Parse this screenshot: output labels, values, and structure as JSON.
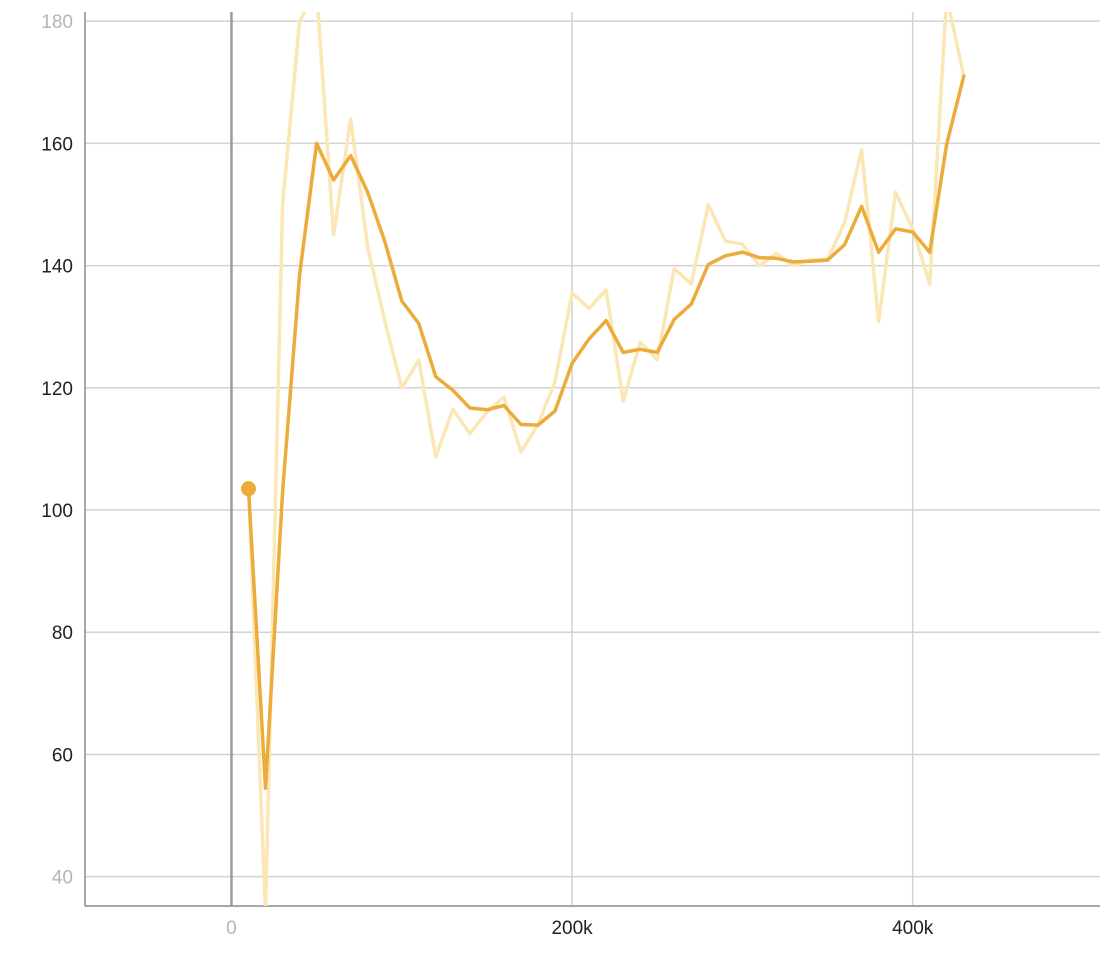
{
  "chart_data": {
    "type": "line",
    "title": "",
    "xlabel": "",
    "ylabel": "",
    "xlim": [
      -86000,
      510000
    ],
    "ylim": [
      35.2,
      181.5
    ],
    "grid": true,
    "x_ticks": [
      {
        "value": 0,
        "label": "0",
        "faded": true
      },
      {
        "value": 200000,
        "label": "200k",
        "faded": false
      },
      {
        "value": 400000,
        "label": "400k",
        "faded": false
      }
    ],
    "y_ticks": [
      {
        "value": 40,
        "label": "40",
        "faded": true
      },
      {
        "value": 60,
        "label": "60",
        "faded": false
      },
      {
        "value": 80,
        "label": "80",
        "faded": false
      },
      {
        "value": 100,
        "label": "100",
        "faded": false
      },
      {
        "value": 120,
        "label": "120",
        "faded": false
      },
      {
        "value": 140,
        "label": "140",
        "faded": false
      },
      {
        "value": 160,
        "label": "160",
        "faded": false
      },
      {
        "value": 180,
        "label": "180",
        "faded": true
      }
    ],
    "x": [
      10000,
      20000,
      30000,
      40000,
      50000,
      60000,
      70000,
      80000,
      90000,
      100000,
      110000,
      120000,
      130000,
      140000,
      150000,
      160000,
      170000,
      180000,
      190000,
      200000,
      210000,
      220000,
      230000,
      240000,
      250000,
      260000,
      270000,
      280000,
      290000,
      300000,
      310000,
      320000,
      330000,
      340000,
      350000,
      360000,
      370000,
      380000,
      390000,
      400000,
      410000,
      420000,
      430000
    ],
    "series": [
      {
        "role": "raw",
        "color": "#fbe7b5",
        "values": [
          103.5,
          34,
          150,
          180,
          185,
          145,
          164,
          143,
          131,
          120,
          124.5,
          108.7,
          116.5,
          112.5,
          116,
          118.5,
          109.5,
          114,
          121,
          135.5,
          133,
          136,
          117.8,
          127.5,
          124.6,
          139.5,
          137,
          150,
          144,
          143.5,
          140,
          142,
          140,
          141,
          141,
          147,
          159,
          130.8,
          152,
          146,
          137,
          184,
          171
        ]
      },
      {
        "role": "smoothed",
        "color": "#ebac3b",
        "values": [
          103.5,
          54.5,
          103,
          138.5,
          160,
          154,
          158,
          152,
          144,
          134.2,
          130.5,
          121.8,
          119.6,
          116.7,
          116.4,
          117.1,
          114,
          113.9,
          116.2,
          124,
          128,
          131,
          125.8,
          126.3,
          125.8,
          131.2,
          133.7,
          140.2,
          141.6,
          142.2,
          141.3,
          141.2,
          140.6,
          140.7,
          140.9,
          143.4,
          149.7,
          142.2,
          146,
          145.5,
          142.2,
          159.9,
          171
        ]
      }
    ]
  }
}
